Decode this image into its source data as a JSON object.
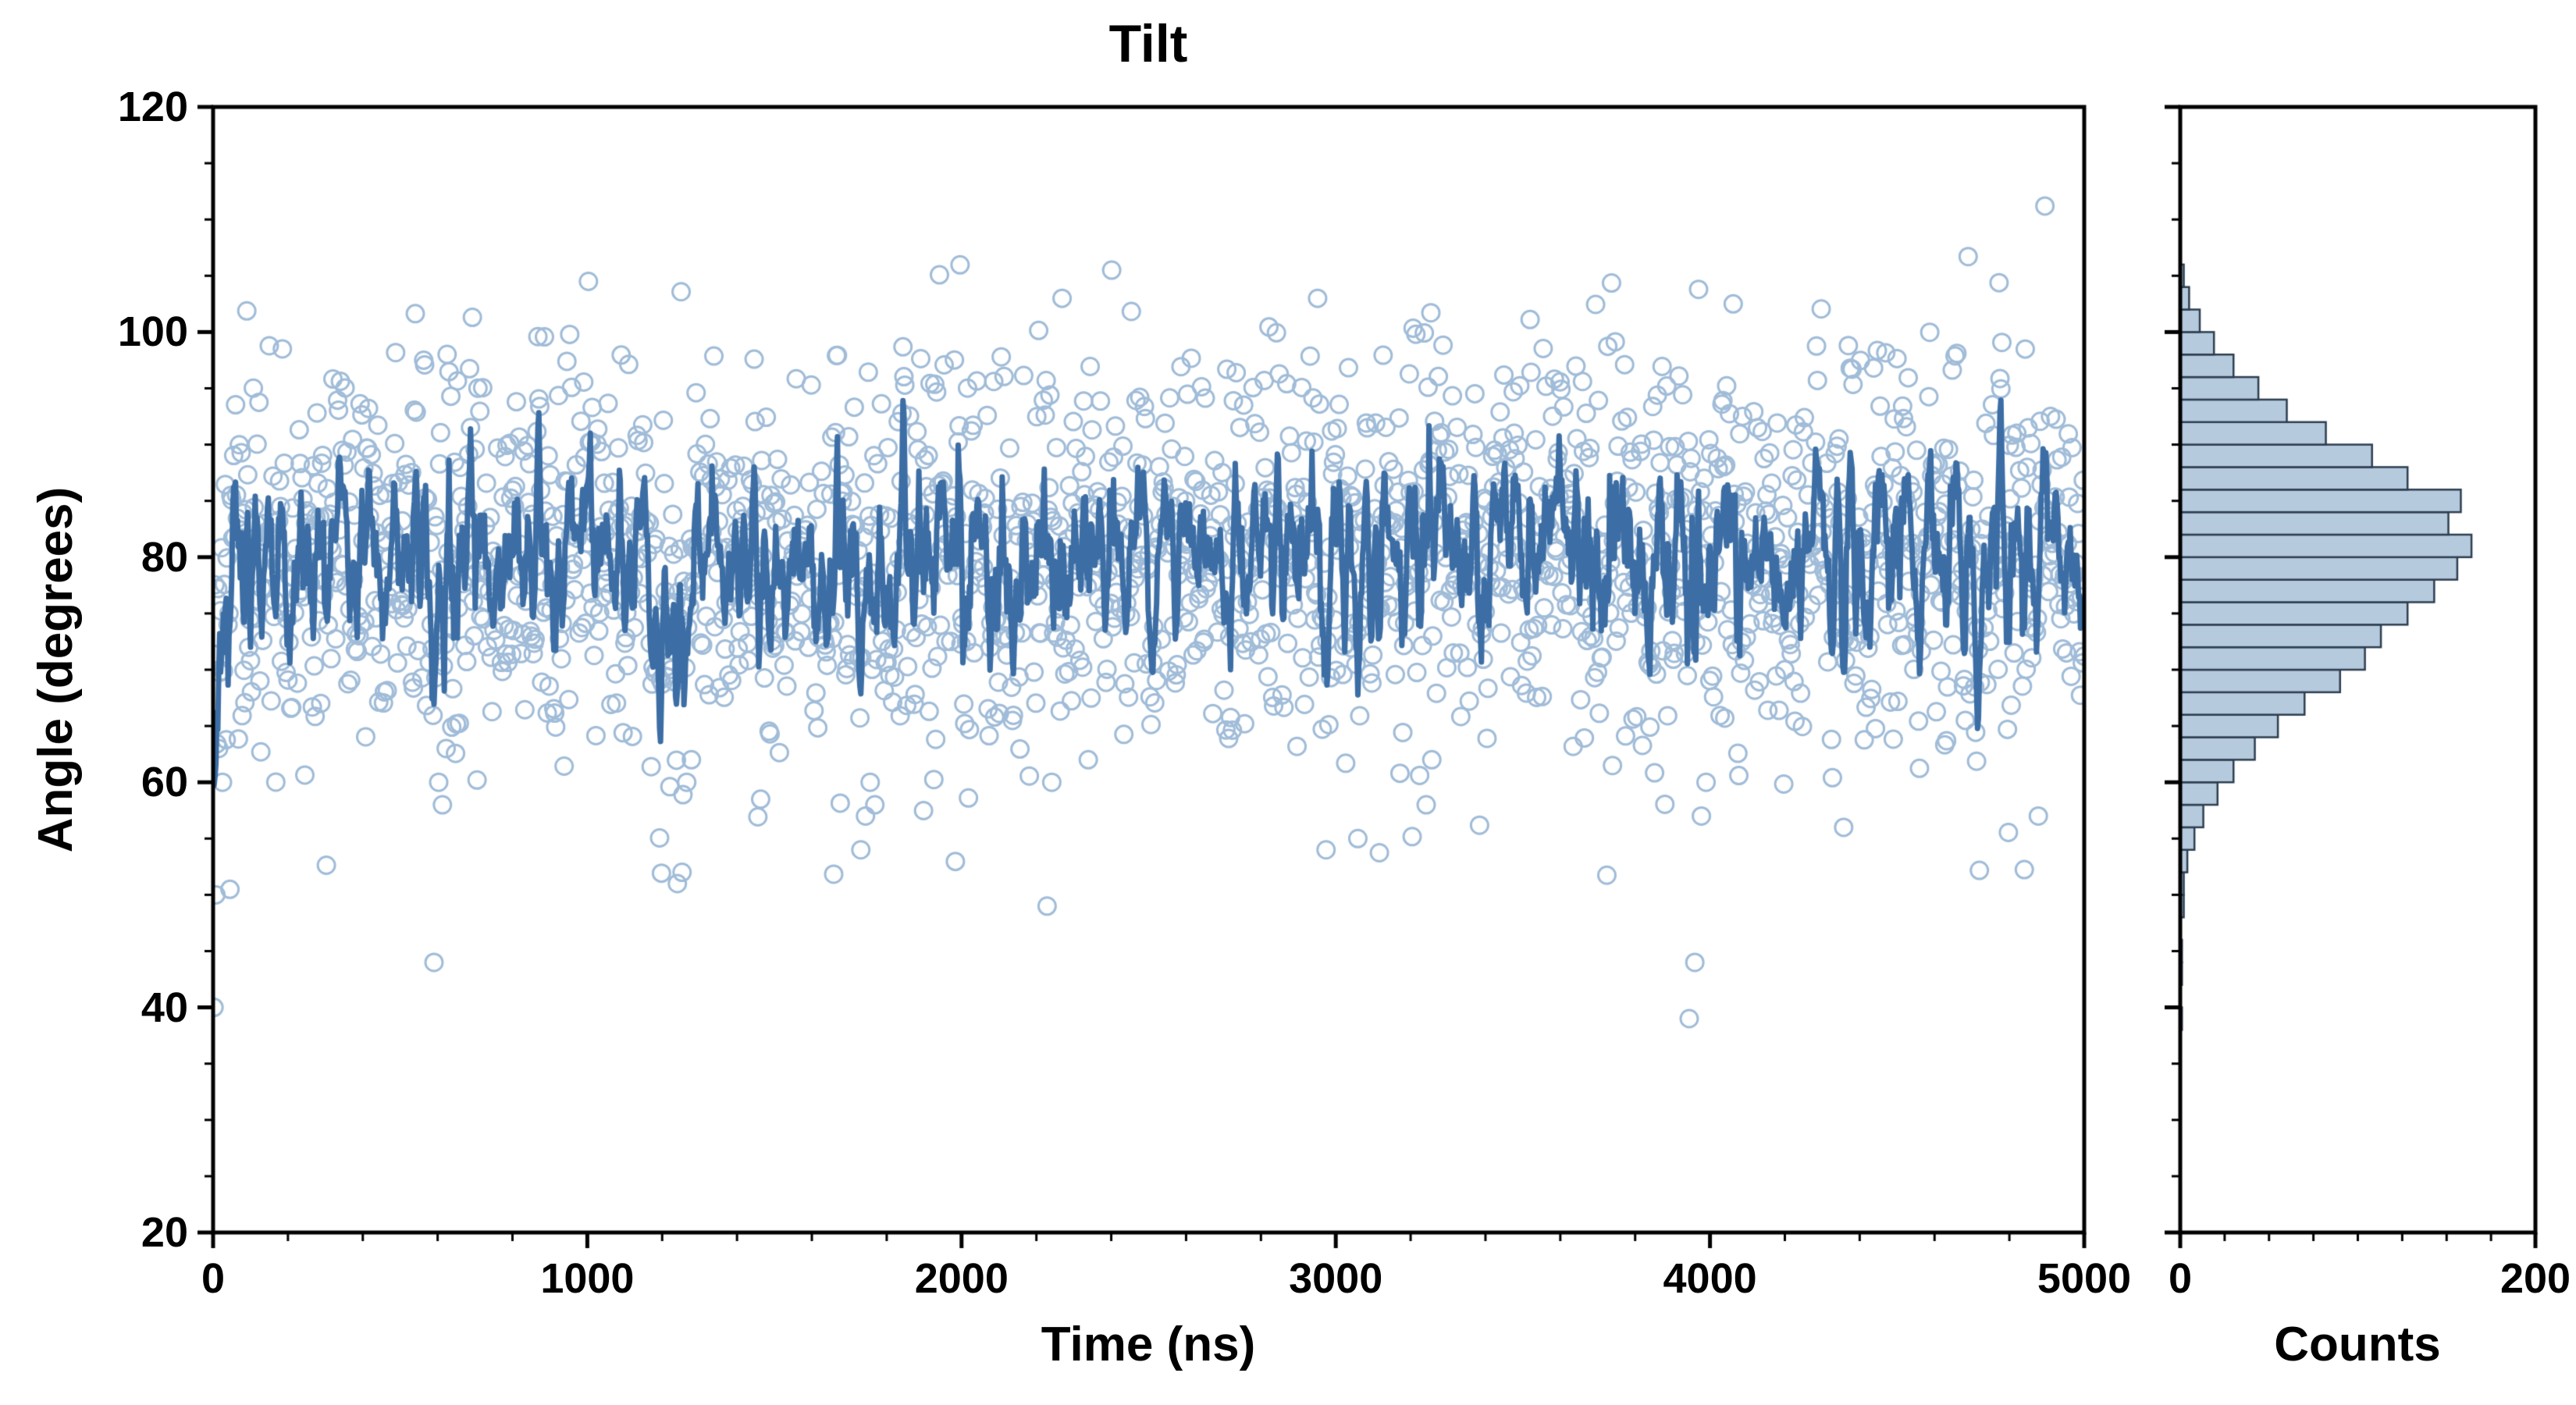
{
  "page": {
    "background": "#ffffff"
  },
  "chart_data": {
    "type": "scatter",
    "title": "Tilt",
    "main": {
      "xlabel": "Time (ns)",
      "ylabel": "Angle (degrees)",
      "xlim": [
        0,
        5000
      ],
      "ylim": [
        20,
        120
      ],
      "x_ticks": [
        "0",
        "1000",
        "2000",
        "3000",
        "4000",
        "5000"
      ],
      "x_tick_values": [
        0,
        1000,
        2000,
        3000,
        4000,
        5000
      ],
      "x_minor_step": 200,
      "y_ticks": [
        "20",
        "40",
        "60",
        "80",
        "100",
        "120"
      ],
      "y_tick_values": [
        20,
        40,
        60,
        80,
        100,
        120
      ],
      "y_minor_step": 5,
      "grid": false,
      "scatter": {
        "n": 2000,
        "mean": 80,
        "std": 9,
        "seed": 42,
        "marker": "open-circle",
        "color": "#a0bcd8"
      },
      "outliers": [
        {
          "x": 3,
          "y": 40
        },
        {
          "x": 8,
          "y": 50
        },
        {
          "x": 15,
          "y": 63
        },
        {
          "x": 25,
          "y": 60
        },
        {
          "x": 590,
          "y": 44
        },
        {
          "x": 602,
          "y": 60
        },
        {
          "x": 612,
          "y": 58
        },
        {
          "x": 622,
          "y": 63
        },
        {
          "x": 1240,
          "y": 51
        },
        {
          "x": 1252,
          "y": 52
        },
        {
          "x": 1266,
          "y": 60
        },
        {
          "x": 1278,
          "y": 62
        },
        {
          "x": 1730,
          "y": 54
        },
        {
          "x": 1744,
          "y": 57
        },
        {
          "x": 1756,
          "y": 60
        },
        {
          "x": 1768,
          "y": 58
        },
        {
          "x": 2228,
          "y": 49
        },
        {
          "x": 2242,
          "y": 60
        },
        {
          "x": 2975,
          "y": 54
        },
        {
          "x": 3058,
          "y": 55
        },
        {
          "x": 3242,
          "y": 58
        },
        {
          "x": 3256,
          "y": 62
        },
        {
          "x": 3945,
          "y": 39
        },
        {
          "x": 3960,
          "y": 44
        },
        {
          "x": 3976,
          "y": 57
        },
        {
          "x": 3990,
          "y": 60
        },
        {
          "x": 4356,
          "y": 56
        },
        {
          "x": 4878,
          "y": 57
        },
        {
          "x": 1002,
          "y": 104.5
        },
        {
          "x": 2402,
          "y": 105.5
        },
        {
          "x": 2268,
          "y": 103
        },
        {
          "x": 2952,
          "y": 103
        },
        {
          "x": 4062,
          "y": 102.5
        }
      ],
      "line": {
        "description": "running average of tilt angle",
        "window": 5,
        "color": "#3c6ea5",
        "width": 7
      }
    },
    "hist": {
      "xlabel": "Counts",
      "xlim": [
        0,
        200
      ],
      "x_ticks": [
        "0",
        "200"
      ],
      "x_tick_values": [
        0,
        200
      ],
      "x_minor_step": 25,
      "y_minor_step": 5,
      "y_major_step": 20,
      "orientation": "horizontal",
      "bin_start": 38,
      "bin_width": 2,
      "counts": [
        1,
        0,
        1,
        1,
        0,
        2,
        2,
        4,
        8,
        13,
        21,
        30,
        42,
        55,
        70,
        90,
        104,
        113,
        128,
        143,
        156,
        164,
        151,
        158,
        128,
        108,
        82,
        60,
        44,
        30,
        19,
        11,
        5,
        2
      ],
      "fill": "#b6cade",
      "edge": "#2d3e50"
    },
    "colors": {
      "axis": "#000000",
      "background": "#ffffff"
    }
  }
}
